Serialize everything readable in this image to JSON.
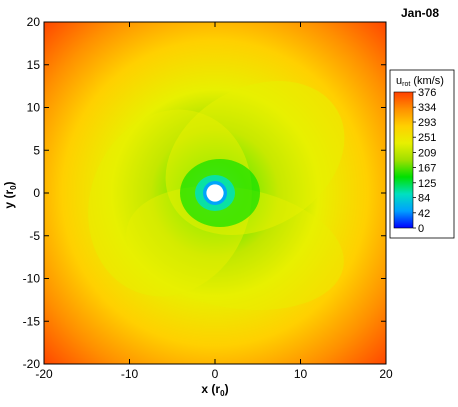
{
  "chart_data": {
    "type": "heatmap",
    "title": "Jan-08",
    "xlabel": "x (r",
    "xlabel_sub": "0",
    "xlabel_end": ")",
    "ylabel": "y (r",
    "ylabel_sub": "0",
    "ylabel_end": ")",
    "xlim": [
      -20,
      20
    ],
    "ylim": [
      -20,
      20
    ],
    "x_ticks": [
      -20,
      -10,
      0,
      10,
      20
    ],
    "y_ticks": [
      -20,
      -15,
      -10,
      -5,
      0,
      5,
      10,
      15,
      20
    ],
    "x_tick_labels": [
      "-20",
      "-10",
      "0",
      "10",
      "20"
    ],
    "y_tick_labels": [
      "-20",
      "-15",
      "-10",
      "-5",
      "0",
      "5",
      "10",
      "15",
      "20"
    ],
    "colorbar": {
      "title": "u",
      "title_sub": "rot",
      "title_end": " (km/s)",
      "min": 0,
      "max": 376,
      "ticks": [
        376,
        334,
        293,
        251,
        209,
        167,
        125,
        84,
        42,
        0
      ],
      "tick_labels": [
        "376",
        "334",
        "293",
        "251",
        "209",
        "167",
        "125",
        "84",
        "42",
        "0"
      ],
      "colors": [
        "#0000ff",
        "#00a0ff",
        "#00e0c0",
        "#00e000",
        "#a0e000",
        "#e8f000",
        "#ffd000",
        "#ff9000",
        "#ff4000"
      ]
    },
    "inner_boundary_radius": 1,
    "field_description_values": {
      "center_min": 0,
      "inner_ring_approx": 125,
      "mid_ring_approx": 251,
      "outer_corner_approx": 376
    }
  }
}
